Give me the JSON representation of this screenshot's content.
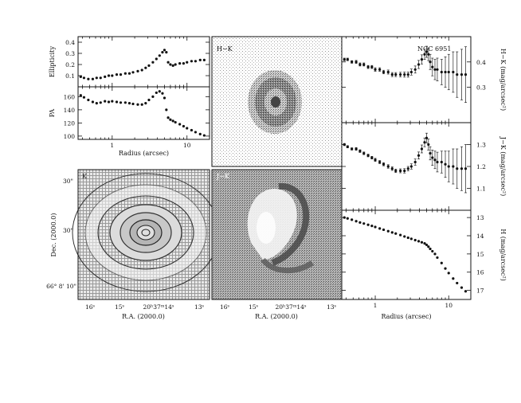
{
  "figure_label": "NGC 6951",
  "panel_labels": {
    "hk_image": "H−K",
    "jk_image": "J−K",
    "k_image": "K"
  },
  "image_axes": {
    "dec_label": "Dec. (2000.0)",
    "ra_label": "R.A. (2000.0)",
    "dec_ticks": [
      "30\"",
      "30\"",
      "66° 8' 10\""
    ],
    "ra_ticks": [
      "16ˢ",
      "15ˢ",
      "20ʰ37ᵐ14ˢ",
      "13ˢ"
    ]
  },
  "colors": {
    "ink": "#111111",
    "paper": "#ffffff"
  },
  "chart_data": [
    {
      "type": "scatter",
      "panel": "ellipticity",
      "ylabel": "Ellipticity",
      "xscale": "log",
      "xlim": [
        0.35,
        20
      ],
      "ylim": [
        0.0,
        0.45
      ],
      "yticks": [
        0.1,
        0.2,
        0.3,
        0.4
      ],
      "x": [
        0.38,
        0.42,
        0.48,
        0.55,
        0.62,
        0.7,
        0.8,
        0.9,
        1.0,
        1.15,
        1.3,
        1.5,
        1.7,
        1.9,
        2.2,
        2.5,
        2.8,
        3.1,
        3.5,
        3.9,
        4.3,
        4.7,
        5.0,
        5.3,
        5.6,
        6.0,
        6.5,
        7.0,
        8.0,
        9.0,
        10.0,
        11.5,
        13.0,
        15.0,
        17.0
      ],
      "y": [
        0.09,
        0.08,
        0.07,
        0.07,
        0.08,
        0.08,
        0.09,
        0.1,
        0.1,
        0.11,
        0.11,
        0.12,
        0.12,
        0.13,
        0.14,
        0.15,
        0.17,
        0.19,
        0.22,
        0.25,
        0.28,
        0.31,
        0.33,
        0.31,
        0.22,
        0.2,
        0.19,
        0.2,
        0.21,
        0.21,
        0.22,
        0.23,
        0.23,
        0.24,
        0.24
      ]
    },
    {
      "type": "scatter",
      "panel": "pa",
      "ylabel": "PA",
      "xlabel": "Radius (arcsec)",
      "xscale": "log",
      "xlim": [
        0.35,
        20
      ],
      "xticks": [
        1,
        10
      ],
      "ylim": [
        95,
        175
      ],
      "yticks": [
        100,
        120,
        140,
        160
      ],
      "x": [
        0.38,
        0.42,
        0.48,
        0.55,
        0.62,
        0.7,
        0.8,
        0.9,
        1.0,
        1.15,
        1.3,
        1.5,
        1.7,
        1.9,
        2.2,
        2.5,
        2.8,
        3.1,
        3.5,
        3.9,
        4.3,
        4.7,
        5.0,
        5.3,
        5.6,
        6.0,
        6.5,
        7.0,
        8.0,
        9.0,
        10.0,
        11.5,
        13.0,
        15.0,
        17.0
      ],
      "y": [
        162,
        159,
        155,
        152,
        150,
        151,
        153,
        152,
        153,
        152,
        151,
        151,
        150,
        149,
        148,
        148,
        150,
        155,
        160,
        166,
        168,
        165,
        158,
        140,
        128,
        125,
        123,
        121,
        118,
        115,
        112,
        109,
        106,
        103,
        101
      ]
    },
    {
      "type": "scatter",
      "panel": "h_minus_k_profile",
      "ylabel": "H−K (mag/arcsec²)",
      "xscale": "log",
      "xlim": [
        0.35,
        20
      ],
      "ylim": [
        0.16,
        0.5
      ],
      "yticks": [
        0.3,
        0.4
      ],
      "error_bars": true,
      "x": [
        0.38,
        0.42,
        0.48,
        0.55,
        0.62,
        0.7,
        0.8,
        0.9,
        1.0,
        1.15,
        1.3,
        1.5,
        1.7,
        1.9,
        2.2,
        2.5,
        2.8,
        3.1,
        3.5,
        3.9,
        4.3,
        4.7,
        5.0,
        5.3,
        5.6,
        6.0,
        6.5,
        7.0,
        8.0,
        9.0,
        10.0,
        11.5,
        13.0,
        15.0,
        17.0
      ],
      "y": [
        0.41,
        0.41,
        0.4,
        0.4,
        0.39,
        0.39,
        0.38,
        0.38,
        0.37,
        0.37,
        0.36,
        0.36,
        0.35,
        0.35,
        0.35,
        0.35,
        0.35,
        0.36,
        0.37,
        0.39,
        0.41,
        0.43,
        0.44,
        0.43,
        0.4,
        0.38,
        0.37,
        0.37,
        0.36,
        0.36,
        0.36,
        0.36,
        0.35,
        0.35,
        0.35
      ],
      "yerr": [
        0.005,
        0.005,
        0.005,
        0.006,
        0.006,
        0.006,
        0.006,
        0.006,
        0.007,
        0.007,
        0.007,
        0.008,
        0.008,
        0.008,
        0.009,
        0.01,
        0.01,
        0.012,
        0.014,
        0.016,
        0.018,
        0.02,
        0.022,
        0.025,
        0.03,
        0.035,
        0.04,
        0.045,
        0.05,
        0.06,
        0.07,
        0.08,
        0.09,
        0.1,
        0.11
      ]
    },
    {
      "type": "scatter",
      "panel": "j_minus_k_profile",
      "ylabel": "J−K (mag/arcsec²)",
      "xscale": "log",
      "xlim": [
        0.35,
        20
      ],
      "ylim": [
        1.0,
        1.4
      ],
      "yticks": [
        1.1,
        1.2,
        1.3
      ],
      "error_bars": true,
      "x": [
        0.38,
        0.42,
        0.48,
        0.55,
        0.62,
        0.7,
        0.8,
        0.9,
        1.0,
        1.15,
        1.3,
        1.5,
        1.7,
        1.9,
        2.2,
        2.5,
        2.8,
        3.1,
        3.5,
        3.9,
        4.3,
        4.7,
        5.0,
        5.3,
        5.6,
        6.0,
        6.5,
        7.0,
        8.0,
        9.0,
        10.0,
        11.5,
        13.0,
        15.0,
        17.0
      ],
      "y": [
        1.3,
        1.29,
        1.28,
        1.28,
        1.27,
        1.26,
        1.25,
        1.24,
        1.23,
        1.22,
        1.21,
        1.2,
        1.19,
        1.18,
        1.18,
        1.18,
        1.19,
        1.2,
        1.22,
        1.25,
        1.28,
        1.31,
        1.33,
        1.3,
        1.26,
        1.24,
        1.23,
        1.22,
        1.22,
        1.21,
        1.2,
        1.2,
        1.19,
        1.19,
        1.19
      ],
      "yerr": [
        0.005,
        0.005,
        0.005,
        0.006,
        0.006,
        0.006,
        0.006,
        0.006,
        0.007,
        0.007,
        0.007,
        0.008,
        0.008,
        0.008,
        0.009,
        0.01,
        0.01,
        0.012,
        0.014,
        0.016,
        0.018,
        0.02,
        0.022,
        0.025,
        0.03,
        0.035,
        0.04,
        0.045,
        0.05,
        0.06,
        0.07,
        0.08,
        0.09,
        0.1,
        0.11
      ]
    },
    {
      "type": "scatter",
      "panel": "h_profile",
      "ylabel": "H (mag/arcsec²)",
      "xlabel": "Radius (arcsec)",
      "xscale": "log",
      "xlim": [
        0.35,
        20
      ],
      "xticks": [
        1,
        10
      ],
      "ylim": [
        12.6,
        17.5
      ],
      "y_inverted": true,
      "yticks": [
        13,
        14,
        15,
        16,
        17
      ],
      "x": [
        0.38,
        0.42,
        0.48,
        0.55,
        0.62,
        0.7,
        0.8,
        0.9,
        1.0,
        1.15,
        1.3,
        1.5,
        1.7,
        1.9,
        2.2,
        2.5,
        2.8,
        3.1,
        3.5,
        3.9,
        4.3,
        4.7,
        5.0,
        5.3,
        5.6,
        6.0,
        6.5,
        7.0,
        8.0,
        9.0,
        10.0,
        11.5,
        13.0,
        15.0,
        17.0
      ],
      "y": [
        13.0,
        13.05,
        13.12,
        13.2,
        13.27,
        13.33,
        13.4,
        13.46,
        13.52,
        13.6,
        13.67,
        13.75,
        13.82,
        13.88,
        13.96,
        14.04,
        14.11,
        14.17,
        14.24,
        14.3,
        14.36,
        14.42,
        14.5,
        14.6,
        14.72,
        14.85,
        15.0,
        15.2,
        15.5,
        15.8,
        16.05,
        16.35,
        16.6,
        16.85,
        17.05
      ]
    }
  ]
}
